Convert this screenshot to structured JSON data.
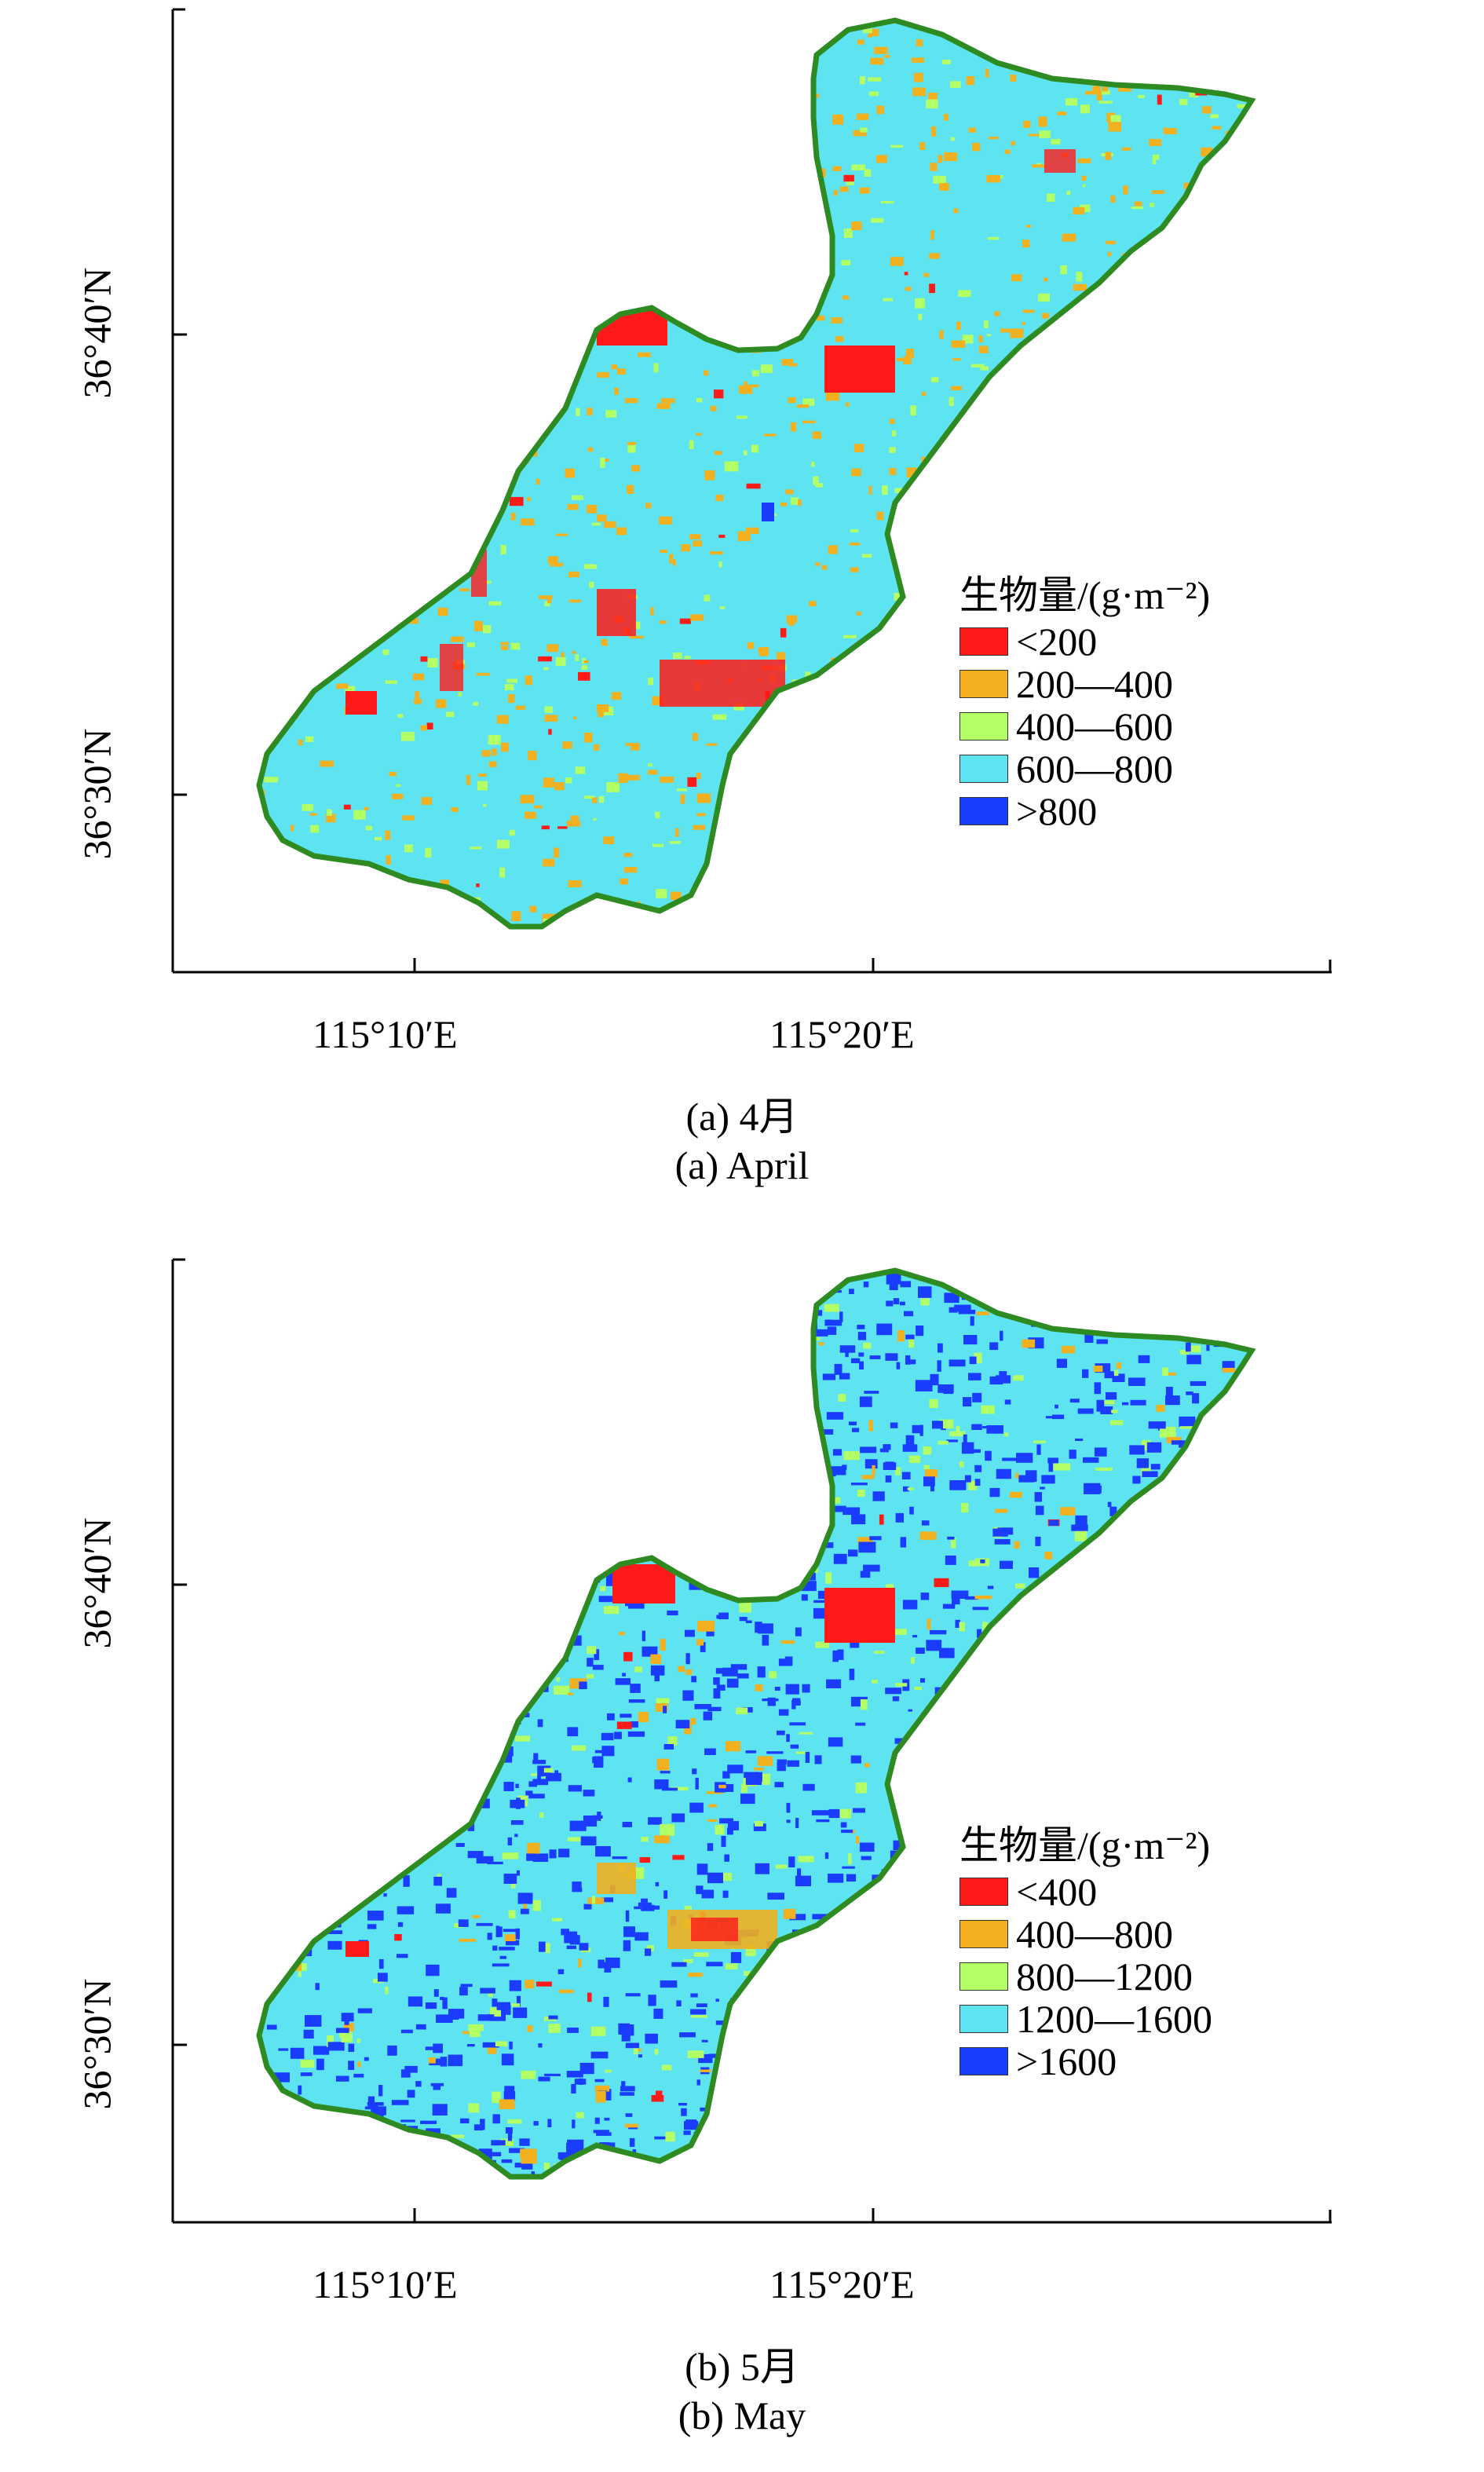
{
  "panels": [
    {
      "id": "a",
      "caption_cn": "(a) 4月",
      "caption_en": "(a) April",
      "x_ticks": [
        "115°10′E",
        "115°20′E"
      ],
      "y_ticks": [
        "36°40′N",
        "36°30′N"
      ],
      "legend": {
        "title": "生物量/(g·m⁻²)",
        "items": [
          {
            "label": "<200",
            "color": "#ff1a1a"
          },
          {
            "label": "200—400",
            "color": "#f0b020"
          },
          {
            "label": "400—600",
            "color": "#b2ff66"
          },
          {
            "label": "600—800",
            "color": "#5ee3f0"
          },
          {
            "label": ">800",
            "color": "#1a3cff"
          }
        ]
      },
      "base_color": "#5ee3f0",
      "speckle_colors": [
        "#f0b020",
        "#b2ff66",
        "#ff1a1a"
      ]
    },
    {
      "id": "b",
      "caption_cn": "(b) 5月",
      "caption_en": "(b) May",
      "x_ticks": [
        "115°10′E",
        "115°20′E"
      ],
      "y_ticks": [
        "36°40′N",
        "36°30′N"
      ],
      "legend": {
        "title": "生物量/(g·m⁻²)",
        "items": [
          {
            "label": "<400",
            "color": "#ff1a1a"
          },
          {
            "label": "400—800",
            "color": "#f0b020"
          },
          {
            "label": "800—1200",
            "color": "#b2ff66"
          },
          {
            "label": "1200—1600",
            "color": "#5ee3f0"
          },
          {
            "label": ">1600",
            "color": "#1a3cff"
          }
        ]
      },
      "base_color": "#5ee3f0",
      "speckle_colors": [
        "#1a3cff",
        "#b2ff66",
        "#f0b020",
        "#ff1a1a"
      ]
    }
  ],
  "boundary_color": "#2e8b22"
}
